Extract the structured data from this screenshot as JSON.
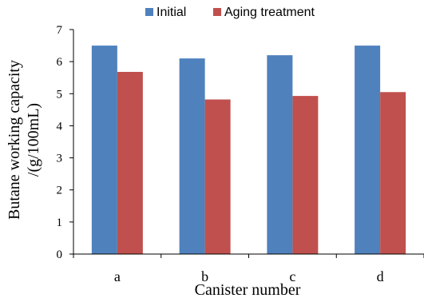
{
  "chart_data": {
    "type": "bar",
    "categories": [
      "a",
      "b",
      "c",
      "d"
    ],
    "series": [
      {
        "name": "Initial",
        "values": [
          6.5,
          6.1,
          6.2,
          6.5
        ],
        "color": "#4F81BD"
      },
      {
        "name": "Aging treatment",
        "values": [
          5.68,
          4.82,
          4.93,
          5.05
        ],
        "color": "#C0504D"
      }
    ],
    "xlabel": "Canister number",
    "ylabel_lines": [
      "Butane working capacity",
      "/(g/100mL)"
    ],
    "ylim": [
      0,
      7
    ],
    "yticks": [
      "0",
      "1",
      "2",
      "3",
      "4",
      "5",
      "6",
      "7"
    ],
    "grid": false,
    "legend_position": "top"
  }
}
